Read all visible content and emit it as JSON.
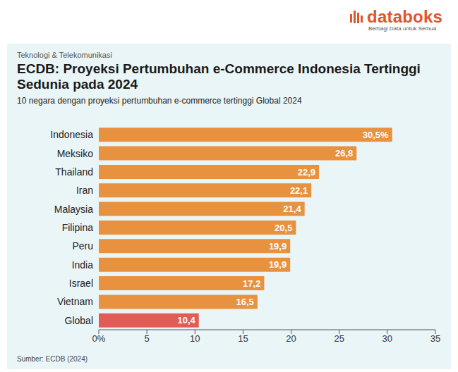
{
  "header": {
    "logo": "databoks",
    "tagline": "Berbagi Data untuk Semua",
    "section": "Teknologi & Telekomunikasi"
  },
  "chart_data": {
    "type": "bar",
    "orientation": "horizontal",
    "title": "ECDB: Proyeksi Pertumbuhan e-Commerce Indonesia Tertinggi Sedunia pada 2024",
    "subtitle": "10 negara dengan proyeksi pertumbuhan e-commerce tertinggi Global 2024",
    "categories": [
      "Indonesia",
      "Meksiko",
      "Thailand",
      "Iran",
      "Malaysia",
      "Filipina",
      "Peru",
      "India",
      "Israel",
      "Vietnam",
      "Global"
    ],
    "values": [
      30.5,
      26.8,
      22.9,
      22.1,
      21.4,
      20.5,
      19.9,
      19.9,
      17.2,
      16.5,
      10.4
    ],
    "value_labels": [
      "30,5%",
      "26,8",
      "22,9",
      "22,1",
      "21,4",
      "20,5",
      "19,9",
      "19,9",
      "17,2",
      "16,5",
      "10,4"
    ],
    "colors": [
      "#e8913f",
      "#e8913f",
      "#e8913f",
      "#e8913f",
      "#e8913f",
      "#e8913f",
      "#e8913f",
      "#e8913f",
      "#e8913f",
      "#e8913f",
      "#e05c55"
    ],
    "xlim": [
      0,
      35
    ],
    "xticks": [
      {
        "value": 0,
        "label": "0%"
      },
      5,
      10,
      15,
      20,
      25,
      30,
      35
    ],
    "grid": false,
    "data_labels": true,
    "source": "Sumber: ECDB (2024)"
  }
}
